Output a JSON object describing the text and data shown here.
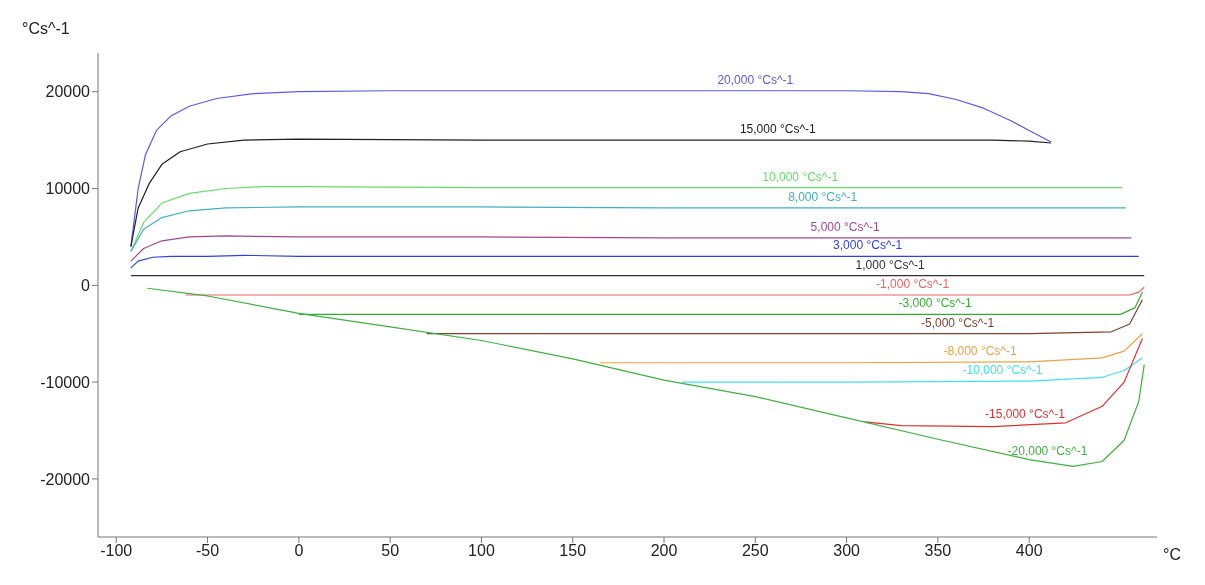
{
  "chart_data": {
    "type": "line",
    "xlabel": "°C",
    "ylabel": "°Cs^-1",
    "xlim": [
      -110,
      470
    ],
    "xticks": [
      -100,
      -50,
      0,
      50,
      100,
      150,
      200,
      250,
      300,
      350,
      400
    ],
    "ylim": [
      -26000,
      24000
    ],
    "yticks": [
      -20000,
      -10000,
      0,
      10000,
      20000
    ],
    "grid": false,
    "legend": false,
    "marker": "none",
    "line_style": "solid",
    "series": [
      {
        "name": "20,000 °Cs^-1",
        "color": "#5a5ae6",
        "x": [
          -92,
          -88,
          -84,
          -78,
          -70,
          -60,
          -45,
          -25,
          0,
          50,
          150,
          250,
          300,
          330,
          345,
          360,
          375,
          390,
          400,
          412
        ],
        "values": [
          4000,
          10000,
          13500,
          16000,
          17500,
          18500,
          19300,
          19800,
          20000,
          20100,
          20100,
          20100,
          20100,
          20000,
          19800,
          19200,
          18300,
          17000,
          16000,
          14800
        ]
      },
      {
        "name": "15,000 °Cs^-1",
        "color": "#202020",
        "x": [
          -92,
          -88,
          -82,
          -75,
          -65,
          -50,
          -30,
          0,
          100,
          200,
          300,
          380,
          400,
          412
        ],
        "values": [
          4000,
          8000,
          10500,
          12500,
          13800,
          14600,
          15000,
          15100,
          15000,
          15000,
          15000,
          15000,
          14900,
          14700
        ]
      },
      {
        "name": "10,000 °Cs^-1",
        "color": "#66dd66",
        "x": [
          -92,
          -85,
          -75,
          -60,
          -40,
          -20,
          0,
          100,
          200,
          300,
          400,
          451
        ],
        "values": [
          3500,
          6500,
          8500,
          9500,
          10000,
          10200,
          10200,
          10100,
          10100,
          10100,
          10100,
          10100
        ]
      },
      {
        "name": "8,000 °Cs^-1",
        "color": "#40b0c0",
        "x": [
          -92,
          -85,
          -75,
          -60,
          -40,
          0,
          100,
          200,
          300,
          400,
          453
        ],
        "values": [
          3500,
          5800,
          7000,
          7700,
          8000,
          8100,
          8100,
          8000,
          8000,
          8000,
          8000
        ]
      },
      {
        "name": "5,000 °Cs^-1",
        "color": "#a04890",
        "x": [
          -92,
          -85,
          -75,
          -60,
          -40,
          0,
          100,
          200,
          300,
          400,
          456
        ],
        "values": [
          2500,
          3800,
          4600,
          5000,
          5100,
          5000,
          5000,
          4900,
          4900,
          4900,
          4900
        ]
      },
      {
        "name": "3,000 °Cs^-1",
        "color": "#3040e0",
        "x": [
          -92,
          -88,
          -80,
          -70,
          -50,
          -30,
          0,
          100,
          200,
          300,
          400,
          460
        ],
        "values": [
          1800,
          2500,
          2900,
          3000,
          3000,
          3100,
          3000,
          3000,
          3000,
          3000,
          3000,
          3000
        ]
      },
      {
        "name": "1,000 °Cs^-1",
        "color": "#303030",
        "x": [
          -92,
          0,
          200,
          400,
          463
        ],
        "values": [
          1000,
          1000,
          1000,
          1000,
          1000
        ]
      },
      {
        "name": "-1,000 °Cs^-1",
        "color": "#f06060",
        "x": [
          -62,
          0,
          200,
          400,
          455,
          460,
          463
        ],
        "values": [
          -1000,
          -1000,
          -1000,
          -1000,
          -1000,
          -700,
          -200
        ]
      },
      {
        "name": "-3,000 °Cs^-1",
        "color": "#30b030",
        "x": [
          0,
          200,
          400,
          450,
          458,
          462
        ],
        "values": [
          -3000,
          -3000,
          -3000,
          -3000,
          -2300,
          -700
        ]
      },
      {
        "name": "-5,000 °Cs^-1",
        "color": "#804030",
        "x": [
          70,
          200,
          400,
          445,
          455,
          462
        ],
        "values": [
          -5000,
          -5000,
          -5000,
          -4800,
          -4000,
          -1500
        ]
      },
      {
        "name": "-8,000 °Cs^-1",
        "color": "#f0a040",
        "x": [
          165,
          300,
          400,
          440,
          452,
          462
        ],
        "values": [
          -8000,
          -8000,
          -7900,
          -7500,
          -6800,
          -5000
        ]
      },
      {
        "name": "-10,000 °Cs^-1",
        "color": "#40e0f0",
        "x": [
          210,
          300,
          400,
          440,
          452,
          462
        ],
        "values": [
          -10000,
          -10000,
          -9900,
          -9500,
          -8800,
          -7500
        ]
      },
      {
        "name": "-15,000 °Cs^-1",
        "color": "#e03030",
        "x": [
          310,
          330,
          380,
          420,
          440,
          452,
          462
        ],
        "values": [
          -14100,
          -14500,
          -14600,
          -14200,
          -12500,
          -10000,
          -5500
        ]
      },
      {
        "name": "-20,000 °Cs^-1",
        "color": "#40b040",
        "x": [
          -83,
          -50,
          0,
          50,
          100,
          150,
          200,
          250,
          300,
          350,
          400,
          424,
          440,
          452,
          460,
          463
        ],
        "values": [
          -300,
          -1100,
          -2900,
          -4300,
          -5700,
          -7600,
          -9800,
          -11500,
          -13700,
          -15900,
          -18000,
          -18700,
          -18200,
          -16000,
          -12000,
          -8200
        ]
      }
    ]
  }
}
